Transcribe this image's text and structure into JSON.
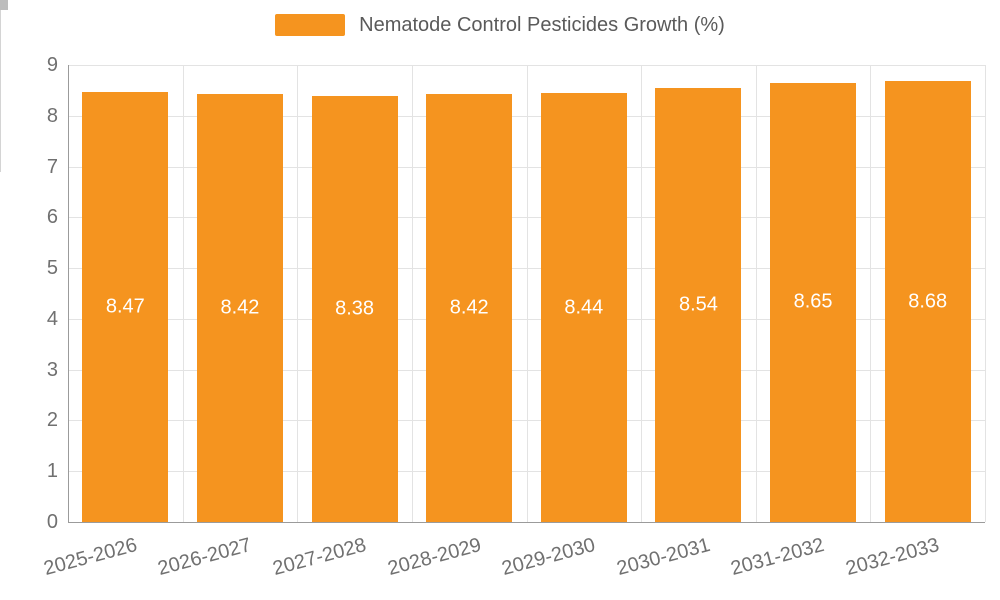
{
  "legend": {
    "label": "Nematode Control Pesticides Growth (%)"
  },
  "colors": {
    "bar": "#F5941F",
    "grid": "#E3E3E3",
    "axis": "#9B9B9B",
    "axis_label": "#707070",
    "legend_text": "#5A5A5A",
    "value_label": "#FFFFFF",
    "background": "#FFFFFF"
  },
  "chart_data": {
    "type": "bar",
    "title": "",
    "legend_entries": [
      "Nematode Control Pesticides Growth (%)"
    ],
    "legend_position": "top-center",
    "categories": [
      "2025-2026",
      "2026-2027",
      "2027-2028",
      "2028-2029",
      "2029-2030",
      "2030-2031",
      "2031-2032",
      "2032-2033"
    ],
    "series": [
      {
        "name": "Nematode Control Pesticides Growth (%)",
        "values": [
          8.47,
          8.42,
          8.38,
          8.42,
          8.44,
          8.54,
          8.65,
          8.68
        ]
      }
    ],
    "value_labels": [
      "8.47",
      "8.42",
      "8.38",
      "8.42",
      "8.44",
      "8.54",
      "8.65",
      "8.68"
    ],
    "value_label_position": "inside-middle",
    "xlabel": "",
    "ylabel": "",
    "ylim": [
      0,
      9
    ],
    "yticks": [
      0,
      1,
      2,
      3,
      4,
      5,
      6,
      7,
      8,
      9
    ],
    "x_label_rotation_deg": -15,
    "grid": true
  }
}
